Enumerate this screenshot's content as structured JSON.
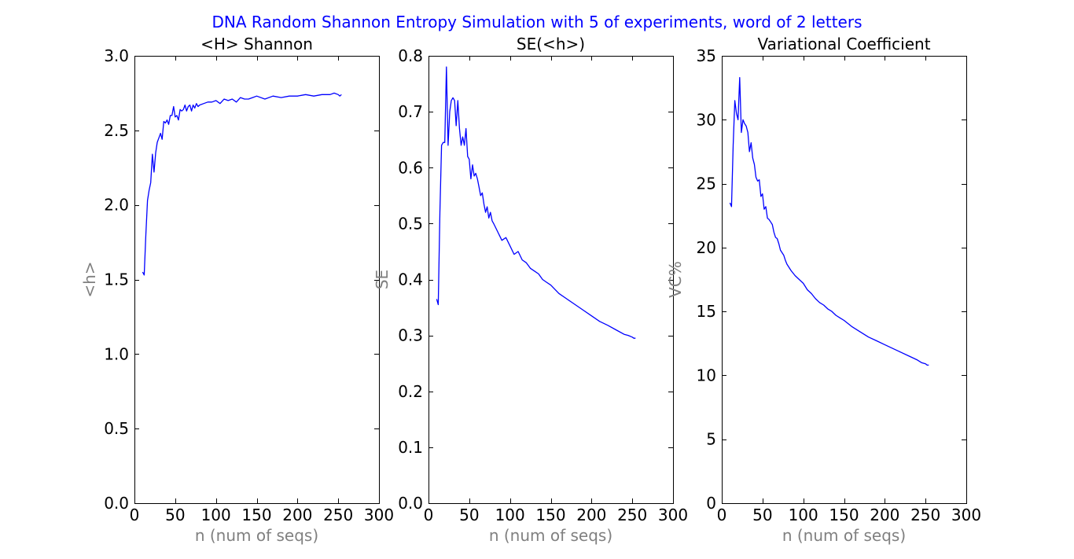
{
  "figure": {
    "suptitle": "DNA Random Shannon Entropy Simulation with 5 of experiments, word of 2 letters",
    "suptitle_color": "#0000ff",
    "line_color": "#0000ff",
    "axis_label_color": "#808080"
  },
  "chart_data": [
    {
      "type": "line",
      "title": "<H> Shannon",
      "xlabel": "n (num of seqs)",
      "ylabel": "<h>",
      "xlim": [
        0,
        300
      ],
      "ylim": [
        0,
        3.0
      ],
      "xticks": [
        0,
        50,
        100,
        150,
        200,
        250,
        300
      ],
      "yticks": [
        0.0,
        0.5,
        1.0,
        1.5,
        2.0,
        2.5,
        3.0
      ],
      "ytick_labels": [
        "0.0",
        "0.5",
        "1.0",
        "1.5",
        "2.0",
        "2.5",
        "3.0"
      ],
      "grid": false,
      "series": [
        {
          "x": [
            10,
            12,
            14,
            16,
            18,
            20,
            22,
            24,
            26,
            28,
            30,
            32,
            34,
            36,
            38,
            40,
            42,
            44,
            46,
            48,
            50,
            52,
            54,
            56,
            58,
            60,
            62,
            64,
            66,
            68,
            70,
            72,
            74,
            76,
            78,
            80,
            85,
            90,
            95,
            100,
            105,
            110,
            115,
            120,
            125,
            130,
            135,
            140,
            145,
            150,
            160,
            170,
            180,
            190,
            200,
            210,
            220,
            230,
            240,
            245,
            250,
            252,
            254
          ],
          "values": [
            1.55,
            1.53,
            1.8,
            2.03,
            2.1,
            2.15,
            2.34,
            2.22,
            2.35,
            2.42,
            2.45,
            2.48,
            2.44,
            2.56,
            2.55,
            2.57,
            2.54,
            2.6,
            2.6,
            2.66,
            2.59,
            2.6,
            2.57,
            2.64,
            2.63,
            2.64,
            2.67,
            2.63,
            2.66,
            2.67,
            2.63,
            2.67,
            2.65,
            2.68,
            2.66,
            2.67,
            2.68,
            2.69,
            2.69,
            2.7,
            2.68,
            2.71,
            2.7,
            2.71,
            2.69,
            2.72,
            2.71,
            2.71,
            2.72,
            2.73,
            2.71,
            2.73,
            2.72,
            2.73,
            2.73,
            2.74,
            2.73,
            2.74,
            2.74,
            2.75,
            2.74,
            2.73,
            2.74
          ]
        }
      ]
    },
    {
      "type": "line",
      "title": "SE(<h>)",
      "xlabel": "n (num of seqs)",
      "ylabel": "SE",
      "xlim": [
        0,
        300
      ],
      "ylim": [
        0,
        0.8
      ],
      "xticks": [
        0,
        50,
        100,
        150,
        200,
        250,
        300
      ],
      "yticks": [
        0.0,
        0.1,
        0.2,
        0.3,
        0.4,
        0.5,
        0.6,
        0.7,
        0.8
      ],
      "ytick_labels": [
        "0.0",
        "0.1",
        "0.2",
        "0.3",
        "0.4",
        "0.5",
        "0.6",
        "0.7",
        "0.8"
      ],
      "grid": false,
      "series": [
        {
          "x": [
            10,
            12,
            14,
            16,
            18,
            20,
            22,
            24,
            26,
            28,
            30,
            32,
            34,
            36,
            38,
            40,
            42,
            44,
            46,
            48,
            50,
            52,
            54,
            56,
            58,
            60,
            62,
            64,
            66,
            68,
            70,
            72,
            74,
            76,
            78,
            80,
            85,
            90,
            95,
            100,
            105,
            110,
            115,
            120,
            125,
            130,
            135,
            140,
            145,
            150,
            160,
            170,
            180,
            190,
            200,
            210,
            220,
            230,
            240,
            245,
            250,
            252,
            254
          ],
          "values": [
            0.365,
            0.355,
            0.52,
            0.64,
            0.645,
            0.645,
            0.78,
            0.64,
            0.7,
            0.72,
            0.725,
            0.72,
            0.675,
            0.72,
            0.67,
            0.64,
            0.655,
            0.64,
            0.67,
            0.62,
            0.615,
            0.58,
            0.605,
            0.585,
            0.59,
            0.58,
            0.565,
            0.55,
            0.555,
            0.535,
            0.52,
            0.53,
            0.51,
            0.52,
            0.505,
            0.5,
            0.485,
            0.47,
            0.475,
            0.46,
            0.445,
            0.45,
            0.435,
            0.43,
            0.42,
            0.415,
            0.41,
            0.4,
            0.395,
            0.39,
            0.375,
            0.365,
            0.355,
            0.345,
            0.335,
            0.325,
            0.318,
            0.31,
            0.302,
            0.3,
            0.297,
            0.295,
            0.295
          ]
        }
      ]
    },
    {
      "type": "line",
      "title": "Variational Coefficient",
      "xlabel": "n (num of seqs)",
      "ylabel": "VC%",
      "xlim": [
        0,
        300
      ],
      "ylim": [
        0,
        35
      ],
      "xticks": [
        0,
        50,
        100,
        150,
        200,
        250,
        300
      ],
      "yticks": [
        0,
        5,
        10,
        15,
        20,
        25,
        30,
        35
      ],
      "ytick_labels": [
        "0",
        "5",
        "10",
        "15",
        "20",
        "25",
        "30",
        "35"
      ],
      "grid": false,
      "series": [
        {
          "x": [
            10,
            12,
            14,
            16,
            18,
            20,
            22,
            24,
            26,
            28,
            30,
            32,
            34,
            36,
            38,
            40,
            42,
            44,
            46,
            48,
            50,
            52,
            54,
            56,
            58,
            60,
            62,
            64,
            66,
            68,
            70,
            72,
            74,
            76,
            78,
            80,
            85,
            90,
            95,
            100,
            105,
            110,
            115,
            120,
            125,
            130,
            135,
            140,
            145,
            150,
            160,
            170,
            180,
            190,
            200,
            210,
            220,
            230,
            240,
            245,
            250,
            252,
            254
          ],
          "values": [
            23.5,
            23.2,
            28.0,
            31.5,
            30.5,
            30.0,
            33.3,
            29.0,
            30.0,
            29.7,
            29.5,
            29.0,
            27.5,
            28.2,
            27.0,
            26.5,
            25.5,
            25.2,
            25.3,
            24.0,
            24.2,
            23.0,
            23.2,
            22.3,
            22.2,
            22.0,
            21.8,
            21.2,
            20.8,
            20.7,
            20.3,
            19.8,
            19.6,
            19.4,
            19.0,
            18.7,
            18.2,
            17.8,
            17.5,
            17.2,
            16.7,
            16.4,
            16.0,
            15.7,
            15.5,
            15.2,
            15.0,
            14.7,
            14.5,
            14.3,
            13.8,
            13.4,
            13.0,
            12.7,
            12.4,
            12.1,
            11.8,
            11.5,
            11.2,
            11.0,
            10.9,
            10.8,
            10.8
          ]
        }
      ]
    }
  ]
}
